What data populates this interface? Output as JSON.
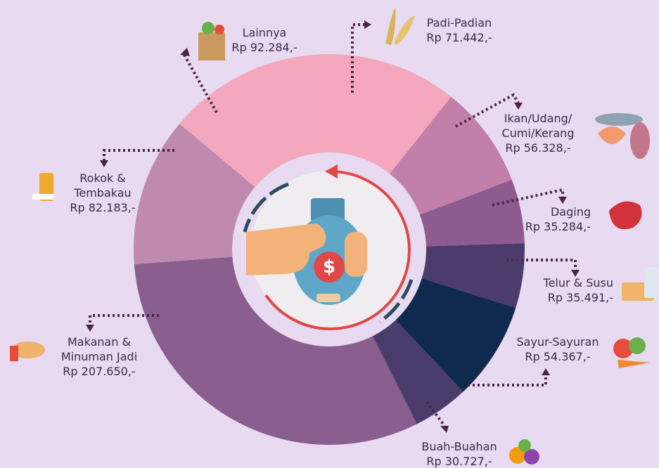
{
  "chart_data": {
    "type": "donut",
    "categories": [
      "Padi-Padian",
      "Ikan/Udang/\nCumi/Kerang",
      "Daging",
      "Telur & Susu",
      "Sayur-Sayuran",
      "Buah-Buahan",
      "Makanan & Minuman Jadi",
      "Rokok & Tembakau",
      "Lainnya"
    ],
    "values": [
      71442,
      56328,
      35284,
      35491,
      54367,
      30727,
      207650,
      82183,
      92284
    ],
    "value_labels": [
      "Rp 71.442,-",
      "Rp 56.328,-",
      "Rp 35.284,-",
      "Rp 35.491,-",
      "Rp 54.367,-",
      "Rp 30.727,-",
      "Rp 207.650,-",
      "Rp 82.183,-",
      "Rp 92.284,-"
    ],
    "colors": [
      "#f4a7bd",
      "#c17fa9",
      "#8d5b8f",
      "#4c3b6d",
      "#0f2a4e",
      "#4a3d6d",
      "#8a5e8f",
      "#c08aae",
      "#f4a8bd"
    ]
  }
}
